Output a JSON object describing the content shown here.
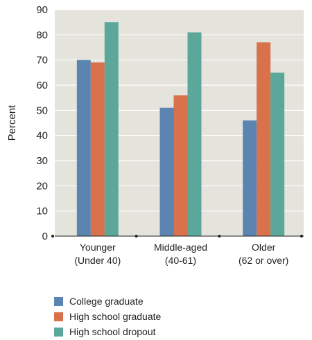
{
  "chart_data": {
    "type": "bar",
    "categories": [
      [
        "Younger",
        "(Under 40)"
      ],
      [
        "Middle-aged",
        "(40-61)"
      ],
      [
        "Older",
        "(62 or over)"
      ]
    ],
    "series": [
      {
        "name": "College graduate",
        "values": [
          70,
          51,
          46
        ],
        "color": "#5b84b1"
      },
      {
        "name": "High school graduate",
        "values": [
          69,
          56,
          77
        ],
        "color": "#d9714a"
      },
      {
        "name": "High school dropout",
        "values": [
          85,
          81,
          65
        ],
        "color": "#5ba79a"
      }
    ],
    "ylabel": "Percent",
    "ylim": [
      0,
      90
    ],
    "yticks": [
      0,
      10,
      20,
      30,
      40,
      50,
      60,
      70,
      80,
      90
    ],
    "grid": true,
    "legend": "bottom-left",
    "plot_background": "#e4e3dc",
    "grid_color": "#ffffff"
  }
}
